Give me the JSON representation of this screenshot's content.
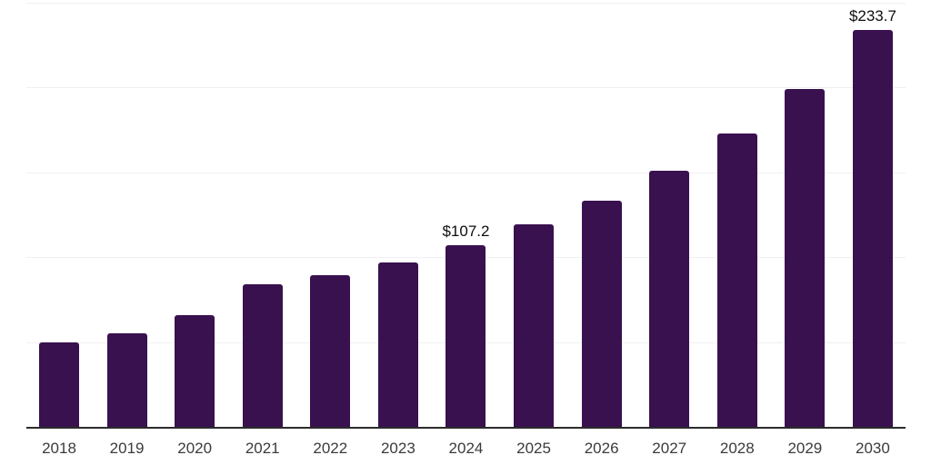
{
  "chart_data": {
    "type": "bar",
    "title": "",
    "xlabel": "",
    "ylabel": "",
    "categories": [
      "2018",
      "2019",
      "2020",
      "2021",
      "2022",
      "2023",
      "2024",
      "2025",
      "2026",
      "2027",
      "2028",
      "2029",
      "2030"
    ],
    "values": [
      50.0,
      55.3,
      65.9,
      83.9,
      89.2,
      97.1,
      107.2,
      119.4,
      133.1,
      151.1,
      172.8,
      199.3,
      233.7
    ],
    "data_labels": [
      {
        "category": "2024",
        "text": "$107.2"
      },
      {
        "category": "2030",
        "text": "$233.7"
      }
    ],
    "ylim": [
      0,
      250
    ],
    "gridline_values": [
      50,
      100,
      150,
      200,
      250
    ],
    "grid": "horizontal",
    "legend": "none",
    "bar_color": "#39114f",
    "axis_line_color": "#2b2b2b",
    "gridline_color": "#f0f0f3",
    "tick_label_color": "#3b3b3b",
    "data_label_color": "#0e0e0e",
    "background_color": "#ffffff"
  }
}
